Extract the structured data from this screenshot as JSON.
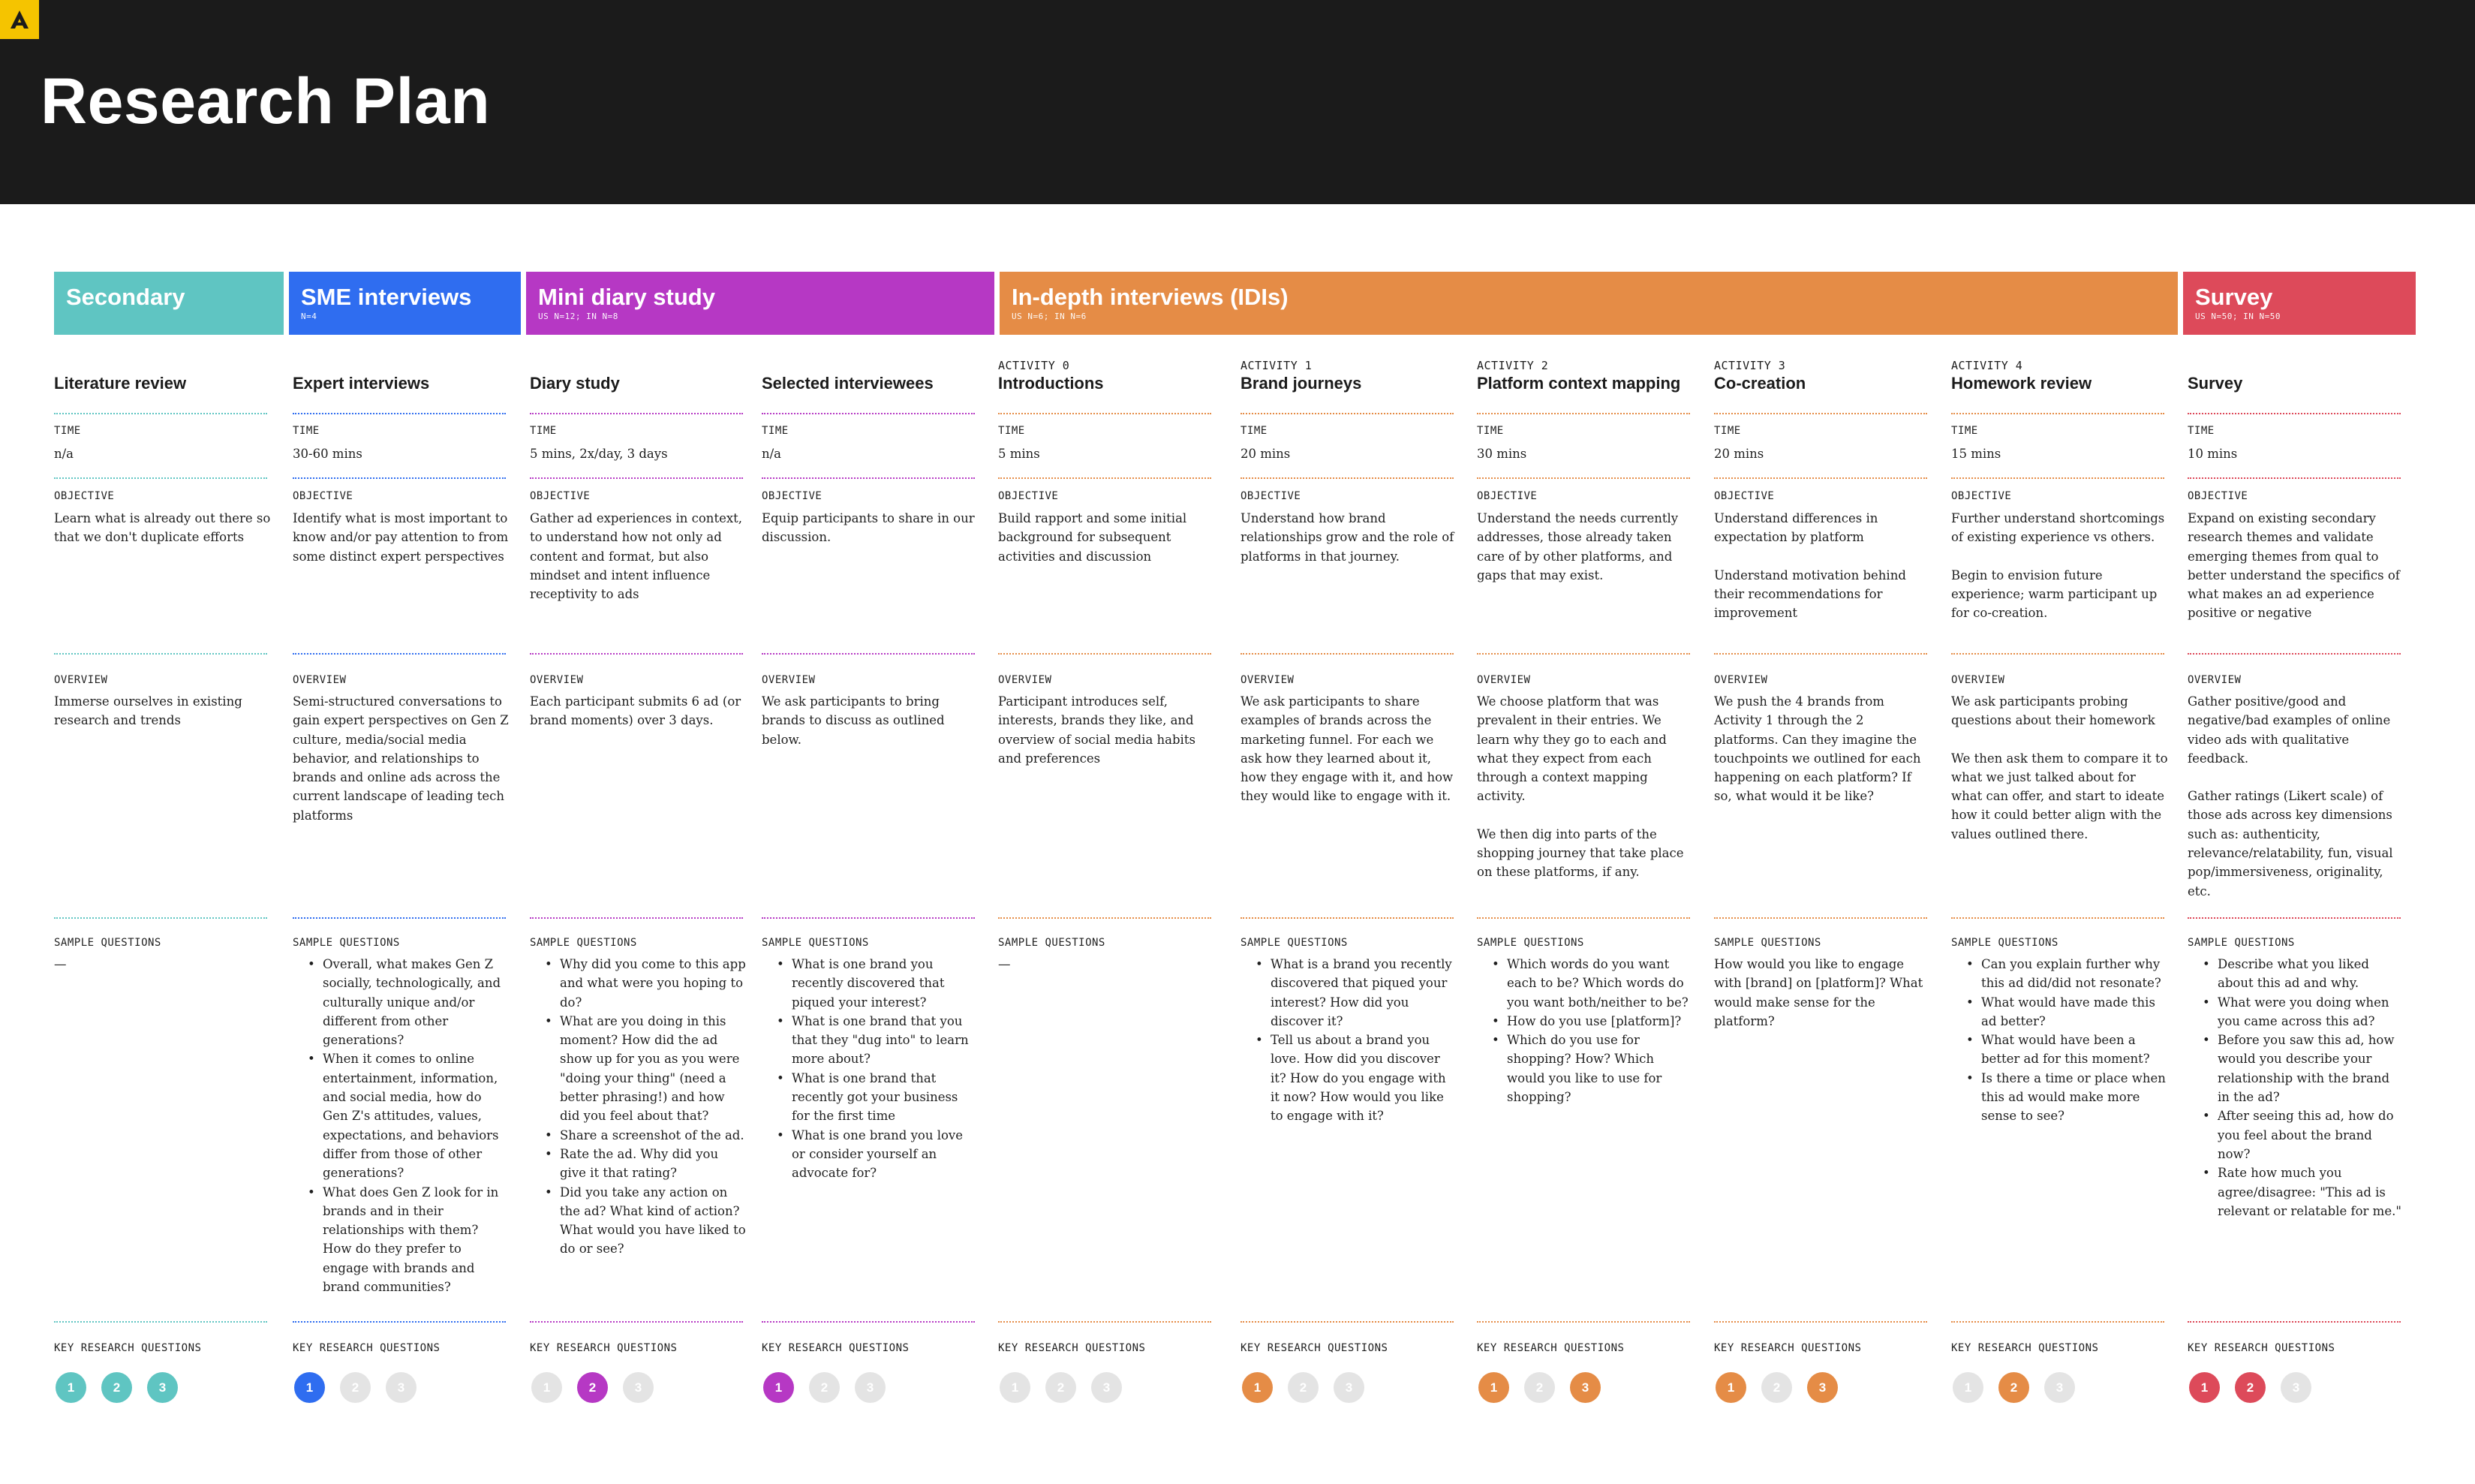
{
  "page": {
    "title": "Research Plan"
  },
  "colors": {
    "secondary": "#5fc5c2",
    "sme": "#2f6df0",
    "diary": "#b638c4",
    "idi": "#e58c46",
    "survey": "#dd4a5a",
    "inactive": "#e4e4e4",
    "header_bg": "#1b1b1b"
  },
  "labels": {
    "time": "TIME",
    "objective": "OBJECTIVE",
    "overview": "OVERVIEW",
    "sample_questions": "SAMPLE QUESTIONS",
    "key_research_questions": "KEY RESEARCH QUESTIONS"
  },
  "bands": [
    {
      "name": "Secondary",
      "sub": ""
    },
    {
      "name": "SME interviews",
      "sub": "N=4"
    },
    {
      "name": "Mini diary study",
      "sub": "US N=12; IN N=8"
    },
    {
      "name": "In-depth interviews (IDIs)",
      "sub": "US N=6; IN N=6"
    },
    {
      "name": "Survey",
      "sub": "US N=50; IN N=50"
    }
  ],
  "columns": [
    {
      "activity": "",
      "title": "Literature review",
      "time": "n/a",
      "objective": [
        "Learn what is already out there so that we don't duplicate efforts"
      ],
      "overview": [
        "Immerse ourselves in existing research and trends"
      ],
      "sample_questions": [
        "—"
      ],
      "krq": {
        "n": [
          "1",
          "2",
          "3"
        ],
        "active": [
          true,
          true,
          true
        ]
      }
    },
    {
      "activity": "",
      "title": "Expert interviews",
      "time": "30-60 mins",
      "objective": [
        "Identify what is most important to know and/or pay attention to from some distinct expert perspectives"
      ],
      "overview": [
        "Semi-structured conversations to gain expert perspectives on Gen Z culture, media/social media behavior, and relationships to brands and online ads across the current landscape of leading tech platforms"
      ],
      "sample_questions": [
        "Overall, what makes Gen Z socially, technologically, and culturally unique and/or different from other generations?",
        "When it comes to online entertainment, information, and social media, how do Gen Z's attitudes, values, expectations, and behaviors differ from those of other generations?",
        "What does Gen Z look for in brands and in their relationships with them? How do they prefer to engage with brands and brand communities?"
      ],
      "krq": {
        "n": [
          "1",
          "2",
          "3"
        ],
        "active": [
          true,
          false,
          false
        ]
      }
    },
    {
      "activity": "",
      "title": "Diary study",
      "time": "5 mins, 2x/day, 3 days",
      "objective": [
        "Gather ad experiences in context, to understand how not only ad content and format, but also mindset and intent influence receptivity to ads"
      ],
      "overview": [
        "Each participant submits 6 ad (or brand moments) over 3 days."
      ],
      "sample_questions": [
        "Why did you come to this app and what were you hoping to do?",
        "What are you doing in this moment? How did the ad show up for you as you were \"doing your thing\" (need a better phrasing!) and how did you feel about that?",
        "Share a screenshot of the ad.",
        "Rate the ad. Why did you give it that rating?",
        "Did you take any action on the ad? What kind of action? What would you have liked to do or see?"
      ],
      "krq": {
        "n": [
          "1",
          "2",
          "3"
        ],
        "active": [
          false,
          true,
          false
        ]
      }
    },
    {
      "activity": "",
      "title": "Selected interviewees",
      "time": "n/a",
      "objective": [
        "Equip participants to share in our discussion."
      ],
      "overview": [
        "We ask participants to bring brands to discuss as outlined below."
      ],
      "sample_questions": [
        "What is one brand you recently discovered that piqued your interest?",
        "What is one brand that you that they \"dug into\" to learn more about?",
        "What is one brand that recently got your business for the first time",
        "What is one brand you love or consider yourself an advocate for?"
      ],
      "krq": {
        "n": [
          "1",
          "2",
          "3"
        ],
        "active": [
          true,
          false,
          false
        ]
      }
    },
    {
      "activity": "ACTIVITY 0",
      "title": "Introductions",
      "time": "5 mins",
      "objective": [
        "Build rapport and some initial background for subsequent activities and discussion"
      ],
      "overview": [
        "Participant introduces self, interests, brands they like, and overview of social media habits and preferences"
      ],
      "sample_questions": [
        "—"
      ],
      "krq": {
        "n": [
          "1",
          "2",
          "3"
        ],
        "active": [
          false,
          false,
          false
        ]
      }
    },
    {
      "activity": "ACTIVITY 1",
      "title": "Brand journeys",
      "time": "20 mins",
      "objective": [
        "Understand how brand relationships grow and the role of platforms in that journey."
      ],
      "overview": [
        "We ask participants to share examples of brands across the marketing funnel. For each we ask how they learned about it, how they engage with it, and how they would like to engage with it."
      ],
      "sample_questions": [
        "What is a brand you recently discovered that piqued your interest? How did you discover it?",
        "Tell us about a brand you love. How did you discover it? How do you engage with it now? How would you like to engage with it?"
      ],
      "krq": {
        "n": [
          "1",
          "2",
          "3"
        ],
        "active": [
          true,
          false,
          false
        ]
      }
    },
    {
      "activity": "ACTIVITY 2",
      "title": "Platform context mapping",
      "time": "30 mins",
      "objective": [
        "Understand the needs currently addresses, those already taken care of by other platforms, and gaps that may exist."
      ],
      "overview": [
        "We choose platform that was prevalent in their entries. We learn why they go to each and what they expect from each through a context mapping activity.",
        "We then dig into parts of the shopping journey that take place on these platforms, if any."
      ],
      "sample_questions": [
        "Which words do you want each to be? Which words do you want both/neither to be?",
        "How do you use [platform]?",
        "Which do you use for shopping? How? Which would you like to use for shopping?"
      ],
      "krq": {
        "n": [
          "1",
          "2",
          "3"
        ],
        "active": [
          true,
          false,
          true
        ]
      }
    },
    {
      "activity": "ACTIVITY 3",
      "title": "Co-creation",
      "time": "20 mins",
      "objective": [
        "Understand differences in expectation by platform",
        "Understand motivation behind their recommendations for improvement"
      ],
      "overview": [
        "We push the 4 brands from Activity 1 through the 2 platforms. Can they imagine the touchpoints we outlined for each happening on each platform? If so, what would it be like?"
      ],
      "sample_questions": [
        "How would you like to engage with [brand] on [platform]? What would make sense for the platform?"
      ],
      "krq": {
        "n": [
          "1",
          "2",
          "3"
        ],
        "active": [
          true,
          false,
          true
        ]
      }
    },
    {
      "activity": "ACTIVITY 4",
      "title": "Homework review",
      "time": "15 mins",
      "objective": [
        "Further understand shortcomings of existing experience vs others.",
        "Begin to envision future experience; warm participant up for co-creation."
      ],
      "overview": [
        "We ask participants probing questions about their homework",
        "We then ask them to compare it to what we just talked about for what               can offer, and start to ideate how it could better align with the values outlined there."
      ],
      "sample_questions": [
        "Can you explain further why this ad did/did not resonate?",
        "What would have made this ad better?",
        "What would have been a better ad for this moment?",
        "Is there a time or place when this ad would make more sense to see?"
      ],
      "krq": {
        "n": [
          "1",
          "2",
          "3"
        ],
        "active": [
          false,
          true,
          false
        ]
      }
    },
    {
      "activity": "",
      "title": "Survey",
      "time": "10 mins",
      "objective": [
        "Expand on existing secondary research themes and validate emerging themes from qual to better understand the specifics of what makes an ad experience positive or negative"
      ],
      "overview": [
        "Gather positive/good and negative/bad examples of online video ads with qualitative feedback.",
        "Gather ratings (Likert scale) of those ads across key dimensions such as: authenticity, relevance/relatability, fun, visual pop/immersiveness, originality, etc."
      ],
      "sample_questions": [
        "Describe what you liked about this ad and why.",
        "What were you doing when you came across this ad?",
        "Before you saw this ad, how would you describe your relationship with the brand in the ad?",
        "After seeing this ad, how do you feel about the brand now?",
        "Rate how much you agree/disagree: \"This ad is relevant or relatable for me.\""
      ],
      "krq": {
        "n": [
          "1",
          "2",
          "3"
        ],
        "active": [
          true,
          true,
          false
        ]
      }
    }
  ]
}
